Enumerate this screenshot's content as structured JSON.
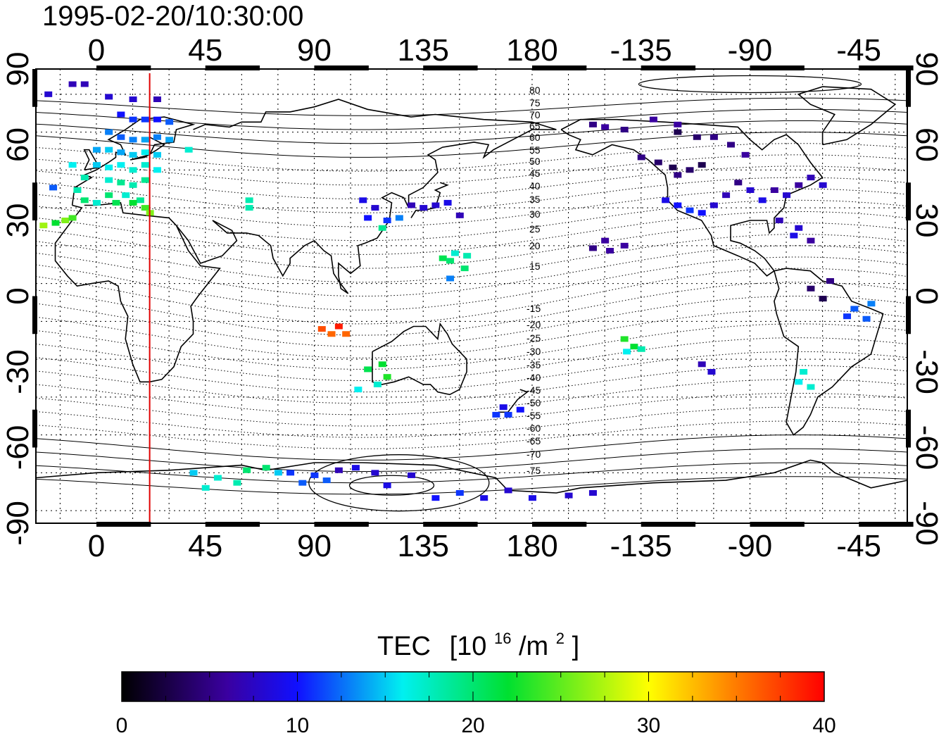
{
  "title": "1995-02-20/10:30:00",
  "map": {
    "lon_range": [
      -25,
      335
    ],
    "lat_range": [
      -90,
      90
    ],
    "lon_ticks": [
      0,
      45,
      90,
      135,
      180,
      225,
      270,
      315
    ],
    "lon_tick_labels": [
      "0",
      "45",
      "90",
      "135",
      "180",
      "-135",
      "-90",
      "-45"
    ],
    "lat_ticks": [
      90,
      60,
      30,
      0,
      -30,
      -60,
      -90
    ],
    "lat_tick_labels": [
      "90",
      "60",
      "30",
      "0",
      "-30",
      "-60",
      "-90"
    ],
    "terminator_lon": 22,
    "grid": "dotted",
    "terminator_color": "#e00000"
  },
  "contour_labels_north": [
    "80",
    "75",
    "70",
    "65",
    "60",
    "55",
    "50",
    "45",
    "40",
    "35",
    "30",
    "25",
    "20",
    "15"
  ],
  "contour_labels_south": [
    "-15",
    "-20",
    "-25",
    "-30",
    "-35",
    "-40",
    "-45",
    "-50",
    "-55",
    "-60",
    "-65",
    "-70",
    "-75"
  ],
  "colorbar": {
    "title": "TEC",
    "unit_prefix": "[10",
    "unit_exp": "16",
    "unit_mid": "/m",
    "unit_exp2": "2",
    "unit_suffix": "]",
    "min": 0,
    "max": 40,
    "tick_labels": [
      "0",
      "10",
      "20",
      "30",
      "40"
    ]
  },
  "chart_data": {
    "type": "scatter",
    "description_values": "TEC observations [lon, lat, tec]",
    "points": [
      [
        -20,
        80,
        8
      ],
      [
        -10,
        84,
        7
      ],
      [
        -5,
        84,
        7
      ],
      [
        5,
        79,
        8
      ],
      [
        15,
        78,
        8
      ],
      [
        25,
        78,
        7
      ],
      [
        10,
        72,
        10
      ],
      [
        15,
        70,
        11
      ],
      [
        20,
        70,
        11
      ],
      [
        25,
        70,
        10
      ],
      [
        30,
        69,
        12
      ],
      [
        5,
        65,
        13
      ],
      [
        10,
        63,
        12
      ],
      [
        15,
        62,
        13
      ],
      [
        20,
        62,
        14
      ],
      [
        25,
        63,
        13
      ],
      [
        30,
        62,
        14
      ],
      [
        0,
        58,
        14
      ],
      [
        5,
        58,
        15
      ],
      [
        10,
        57,
        14
      ],
      [
        15,
        56,
        15
      ],
      [
        20,
        57,
        16
      ],
      [
        25,
        56,
        15
      ],
      [
        -10,
        52,
        16
      ],
      [
        0,
        52,
        15
      ],
      [
        5,
        51,
        16
      ],
      [
        10,
        52,
        16
      ],
      [
        15,
        50,
        17
      ],
      [
        20,
        52,
        17
      ],
      [
        25,
        50,
        16
      ],
      [
        -5,
        47,
        18
      ],
      [
        5,
        46,
        17
      ],
      [
        10,
        45,
        19
      ],
      [
        15,
        44,
        18
      ],
      [
        20,
        46,
        19
      ],
      [
        -18,
        43,
        12
      ],
      [
        -8,
        42,
        18
      ],
      [
        5,
        40,
        20
      ],
      [
        12,
        40,
        17
      ],
      [
        18,
        38,
        19
      ],
      [
        -5,
        38,
        20
      ],
      [
        0,
        37,
        17
      ],
      [
        8,
        37,
        21
      ],
      [
        15,
        37,
        22
      ],
      [
        20,
        35,
        24
      ],
      [
        22,
        33,
        26
      ],
      [
        -22,
        28,
        27
      ],
      [
        -17,
        29,
        22
      ],
      [
        -13,
        30,
        26
      ],
      [
        -10,
        31,
        24
      ],
      [
        38,
        58,
        17
      ],
      [
        63,
        35,
        18
      ],
      [
        63,
        38,
        18
      ],
      [
        110,
        38,
        9
      ],
      [
        115,
        35,
        8
      ],
      [
        112,
        31,
        10
      ],
      [
        120,
        30,
        11
      ],
      [
        118,
        27,
        19
      ],
      [
        125,
        31,
        13
      ],
      [
        130,
        36,
        7
      ],
      [
        135,
        35,
        8
      ],
      [
        140,
        36,
        8
      ],
      [
        145,
        37,
        9
      ],
      [
        150,
        32,
        7
      ],
      [
        143,
        15,
        21
      ],
      [
        146,
        14,
        20
      ],
      [
        148,
        17,
        17
      ],
      [
        153,
        16,
        18
      ],
      [
        152,
        11,
        20
      ],
      [
        146,
        7,
        13
      ],
      [
        93,
        -13,
        37
      ],
      [
        97,
        -15,
        36
      ],
      [
        100,
        -12,
        39
      ],
      [
        103,
        -15,
        36
      ],
      [
        112,
        -29,
        21
      ],
      [
        118,
        -27,
        22
      ],
      [
        120,
        -32,
        23
      ],
      [
        116,
        -35,
        17
      ],
      [
        108,
        -37,
        16
      ],
      [
        170,
        -47,
        11
      ],
      [
        168,
        -44,
        9
      ],
      [
        175,
        -45,
        10
      ],
      [
        165,
        -47,
        11
      ],
      [
        205,
        19,
        5
      ],
      [
        210,
        22,
        6
      ],
      [
        212,
        18,
        6
      ],
      [
        218,
        20,
        6
      ],
      [
        218,
        -17,
        23
      ],
      [
        222,
        -20,
        22
      ],
      [
        225,
        -21,
        18
      ],
      [
        219,
        -22,
        16
      ],
      [
        205,
        68,
        5
      ],
      [
        210,
        67,
        6
      ],
      [
        218,
        66,
        5
      ],
      [
        230,
        70,
        6
      ],
      [
        240,
        68,
        6
      ],
      [
        225,
        55,
        5
      ],
      [
        232,
        53,
        4
      ],
      [
        238,
        51,
        3
      ],
      [
        240,
        48,
        5
      ],
      [
        245,
        50,
        4
      ],
      [
        250,
        52,
        3
      ],
      [
        235,
        38,
        9
      ],
      [
        240,
        36,
        10
      ],
      [
        245,
        34,
        11
      ],
      [
        250,
        33,
        10
      ],
      [
        255,
        36,
        8
      ],
      [
        260,
        40,
        7
      ],
      [
        265,
        45,
        5
      ],
      [
        270,
        42,
        8
      ],
      [
        275,
        38,
        9
      ],
      [
        280,
        42,
        6
      ],
      [
        285,
        40,
        8
      ],
      [
        290,
        44,
        6
      ],
      [
        295,
        47,
        7
      ],
      [
        300,
        44,
        8
      ],
      [
        282,
        30,
        7
      ],
      [
        290,
        27,
        8
      ],
      [
        295,
        22,
        6
      ],
      [
        288,
        24,
        9
      ],
      [
        240,
        65,
        3
      ],
      [
        248,
        63,
        4
      ],
      [
        255,
        63,
        5
      ],
      [
        262,
        60,
        5
      ],
      [
        268,
        56,
        6
      ],
      [
        295,
        3,
        4
      ],
      [
        300,
        -1,
        3
      ],
      [
        303,
        6,
        5
      ],
      [
        313,
        -5,
        12
      ],
      [
        318,
        -9,
        12
      ],
      [
        320,
        -3,
        13
      ],
      [
        310,
        -8,
        11
      ],
      [
        250,
        -27,
        7
      ],
      [
        254,
        -30,
        8
      ],
      [
        290,
        -34,
        16
      ],
      [
        295,
        -36,
        17
      ],
      [
        292,
        -30,
        17
      ],
      [
        40,
        -70,
        15
      ],
      [
        50,
        -72,
        17
      ],
      [
        45,
        -76,
        17
      ],
      [
        58,
        -74,
        18
      ],
      [
        62,
        -69,
        20
      ],
      [
        70,
        -68,
        20
      ],
      [
        75,
        -70,
        15
      ],
      [
        80,
        -70,
        11
      ],
      [
        85,
        -74,
        12
      ],
      [
        90,
        -71,
        11
      ],
      [
        95,
        -73,
        12
      ],
      [
        100,
        -69,
        7
      ],
      [
        107,
        -68,
        9
      ],
      [
        115,
        -70,
        8
      ],
      [
        120,
        -75,
        9
      ],
      [
        130,
        -71,
        8
      ],
      [
        140,
        -80,
        10
      ],
      [
        150,
        -78,
        11
      ],
      [
        160,
        -80,
        9
      ],
      [
        170,
        -77,
        8
      ],
      [
        180,
        -80,
        9
      ],
      [
        195,
        -79,
        8
      ],
      [
        205,
        -78,
        8
      ]
    ]
  }
}
